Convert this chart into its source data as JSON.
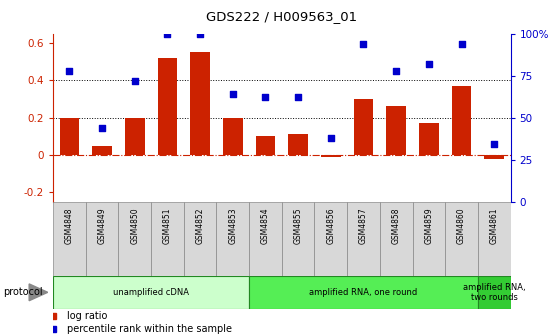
{
  "title": "GDS222 / H009563_01",
  "samples": [
    "GSM4848",
    "GSM4849",
    "GSM4850",
    "GSM4851",
    "GSM4852",
    "GSM4853",
    "GSM4854",
    "GSM4855",
    "GSM4856",
    "GSM4857",
    "GSM4858",
    "GSM4859",
    "GSM4860",
    "GSM4861"
  ],
  "log_ratio": [
    0.2,
    0.05,
    0.2,
    0.52,
    0.55,
    0.2,
    0.1,
    0.11,
    -0.01,
    0.3,
    0.26,
    0.17,
    0.37,
    -0.02
  ],
  "percentile_rank_pct": [
    78,
    44,
    72,
    100,
    100,
    64,
    62,
    62,
    38,
    94,
    78,
    82,
    94,
    34
  ],
  "bar_color": "#cc2200",
  "dot_color": "#0000cc",
  "ylim_left": [
    -0.25,
    0.65
  ],
  "ylim_right": [
    0,
    100
  ],
  "yticks_left": [
    -0.2,
    0.0,
    0.2,
    0.4,
    0.6
  ],
  "yticks_right": [
    0,
    25,
    50,
    75,
    100
  ],
  "ytick_labels_left": [
    "-0.2",
    "0",
    "0.2",
    "0.4",
    "0.6"
  ],
  "ytick_labels_right": [
    "0",
    "25",
    "50",
    "75",
    "100%"
  ],
  "protocol_groups": [
    {
      "label": "unamplified cDNA",
      "start": 0,
      "end": 5,
      "color": "#ccffcc"
    },
    {
      "label": "amplified RNA, one round",
      "start": 6,
      "end": 12,
      "color": "#55ee55"
    },
    {
      "label": "amplified RNA,\ntwo rounds",
      "start": 13,
      "end": 13,
      "color": "#33cc33"
    }
  ],
  "legend_items": [
    {
      "color": "#cc2200",
      "label": "log ratio"
    },
    {
      "color": "#0000cc",
      "label": "percentile rank within the sample"
    }
  ],
  "protocol_label": "protocol",
  "bg_color": "#ffffff",
  "bar_color_left": "#cc2200",
  "axis_color_right": "#0000cc"
}
